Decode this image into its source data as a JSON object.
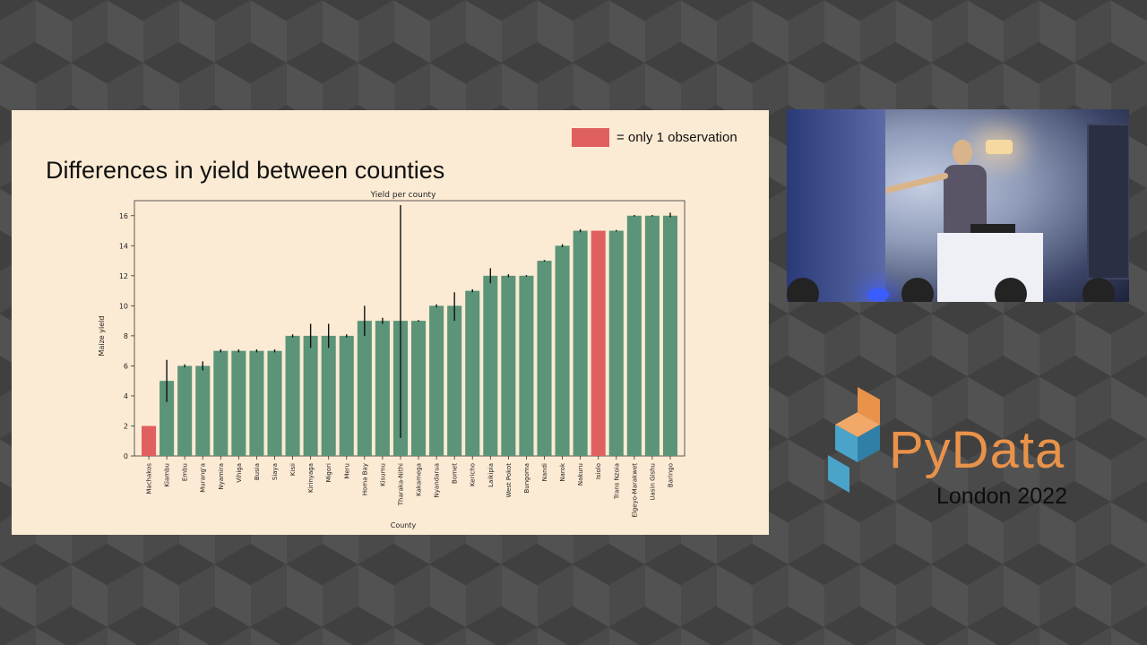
{
  "slide": {
    "title": "Differences in yield between counties",
    "legend_label": "= only 1 observation",
    "legend_color": "#e06060"
  },
  "event": {
    "brand": "PyData",
    "subtitle": "London 2022",
    "brand_color": "#e9924a",
    "logo_colors": [
      "#e9924a",
      "#4aa3c9"
    ]
  },
  "video": {
    "icon": "speaker-video-icon"
  },
  "chart_data": {
    "type": "bar",
    "title": "Yield per county",
    "xlabel": "County",
    "ylabel": "Maize yield",
    "ylim": [
      0,
      17
    ],
    "yticks": [
      0,
      2,
      4,
      6,
      8,
      10,
      12,
      14,
      16
    ],
    "grid": false,
    "bar_color": "#5b9478",
    "highlight_color": "#e06060",
    "categories": [
      "Machakos",
      "Kiambu",
      "Embu",
      "Murang'a",
      "Nyamira",
      "Vihiga",
      "Busia",
      "Siaya",
      "Kisii",
      "Kirinyaga",
      "Migori",
      "Meru",
      "Homa Bay",
      "Kisumu",
      "Tharaka-Nithi",
      "Kakamega",
      "Nyandarua",
      "Bomet",
      "Kericho",
      "Laikipia",
      "West Pokot",
      "Bungoma",
      "Nandi",
      "Narok",
      "Nakuru",
      "Isiolo",
      "Trans Nzoia",
      "Elgeyo-Marakwet",
      "Uasin Gishu",
      "Baringo"
    ],
    "values": [
      2,
      5,
      6,
      6,
      7,
      7,
      7,
      7,
      8,
      8,
      8,
      8,
      9,
      9,
      9,
      9,
      10,
      10,
      11,
      12,
      12,
      12,
      13,
      14,
      15,
      15,
      15,
      16,
      16,
      16
    ],
    "error_low": [
      2,
      3.6,
      5.9,
      5.7,
      6.9,
      6.9,
      6.9,
      6.9,
      7.9,
      7.2,
      7.2,
      7.9,
      8.0,
      8.8,
      1.2,
      8.95,
      9.9,
      9.0,
      10.9,
      11.5,
      11.9,
      11.95,
      12.95,
      13.9,
      14.9,
      15,
      14.95,
      15.95,
      15.95,
      15.9
    ],
    "error_high": [
      2,
      6.4,
      6.1,
      6.3,
      7.1,
      7.1,
      7.1,
      7.1,
      8.1,
      8.8,
      8.8,
      8.1,
      10.0,
      9.2,
      16.7,
      9.05,
      10.1,
      10.9,
      11.1,
      12.5,
      12.1,
      12.05,
      13.05,
      14.1,
      15.1,
      15,
      15.05,
      16.05,
      16.05,
      16.2
    ],
    "highlighted": [
      "Machakos",
      "Isiolo"
    ]
  }
}
